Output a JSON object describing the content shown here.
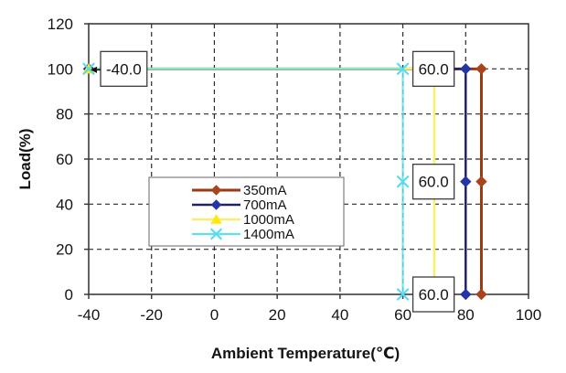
{
  "chart_data": {
    "type": "line",
    "title": "",
    "xlabel": "Ambient Temperature(℃)",
    "ylabel": "Load(%)",
    "xlim": [
      -40,
      100
    ],
    "ylim": [
      0,
      120
    ],
    "xticks": [
      -40,
      -20,
      0,
      20,
      40,
      60,
      80,
      100
    ],
    "yticks": [
      0,
      20,
      40,
      60,
      80,
      100,
      120
    ],
    "grid": {
      "style": "dashed",
      "color": "#2a2a2a"
    },
    "plot_border_color": "#3c3c3c",
    "background": "#ffffff",
    "series": [
      {
        "name": "350mA",
        "color": "#9B3A12",
        "marker": "diamond",
        "marker_color": "#A8431C",
        "line_width": 3,
        "points": [
          [
            -40,
            100
          ],
          [
            85,
            100
          ],
          [
            85,
            50
          ],
          [
            85,
            0
          ]
        ]
      },
      {
        "name": "700mA",
        "color": "#22225E",
        "marker": "diamond",
        "marker_color": "#2535A5",
        "line_width": 2.5,
        "points": [
          [
            -40,
            100
          ],
          [
            80,
            100
          ],
          [
            80,
            50
          ],
          [
            80,
            0
          ]
        ]
      },
      {
        "name": "1000mA",
        "color": "#F9EF6E",
        "marker": "triangle",
        "marker_color": "#FFE90C",
        "line_width": 2.6,
        "points": [
          [
            -40,
            100
          ],
          [
            70,
            100
          ],
          [
            70,
            50
          ],
          [
            70,
            0
          ]
        ]
      },
      {
        "name": "1400mA",
        "color": "#5FE0F2",
        "marker": "x",
        "marker_color": "#55DCEF",
        "line_width": 2.2,
        "line_opacity": 0.85,
        "points": [
          [
            -40,
            100
          ],
          [
            60,
            100
          ],
          [
            60,
            50
          ],
          [
            60,
            0
          ]
        ]
      }
    ],
    "data_labels": [
      {
        "text": "-40.0",
        "x": -40,
        "y": 100,
        "leader": true
      },
      {
        "text": "60.0",
        "x": 60,
        "y": 100
      },
      {
        "text": "60.0",
        "x": 60,
        "y": 50
      },
      {
        "text": "60.0",
        "x": 60,
        "y": 0
      }
    ],
    "legend": {
      "position": "inside-left-center",
      "entries": [
        "350mA",
        "700mA",
        "1000mA",
        "1400mA"
      ]
    }
  }
}
